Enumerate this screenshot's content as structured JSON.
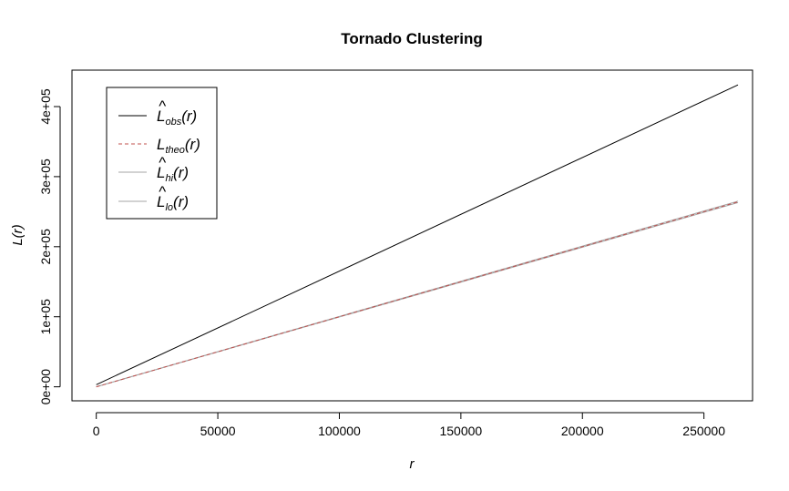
{
  "chart_data": {
    "type": "line",
    "title": "Tornado Clustering",
    "xlabel": "r",
    "ylabel": "L(r)",
    "xlim": [
      -10000,
      270000
    ],
    "ylim": [
      -20000,
      452000
    ],
    "x_ticks": [
      0,
      50000,
      100000,
      150000,
      200000,
      250000
    ],
    "x_tick_labels": [
      "0",
      "50000",
      "100000",
      "150000",
      "200000",
      "250000"
    ],
    "y_ticks": [
      0,
      100000,
      200000,
      300000,
      400000
    ],
    "y_tick_labels": [
      "0e+00",
      "1e+05",
      "2e+05",
      "3e+05",
      "4e+05"
    ],
    "grid": false,
    "legend_position": "top-left",
    "series": [
      {
        "key": "obs",
        "base": "L",
        "hat": true,
        "sub": "obs",
        "arg": "(r)",
        "color": "#000000",
        "dash": "solid",
        "x": [
          0,
          264000
        ],
        "y": [
          3000,
          431000
        ]
      },
      {
        "key": "theo",
        "base": "L",
        "hat": false,
        "sub": "theo",
        "arg": "(r)",
        "color": "#c0504d",
        "dash": "dashed",
        "x": [
          0,
          264000
        ],
        "y": [
          0,
          264000
        ]
      },
      {
        "key": "hi",
        "base": "L",
        "hat": true,
        "sub": "hi",
        "arg": "(r)",
        "color": "#a6a6a6",
        "dash": "solid",
        "x": [
          0,
          264000
        ],
        "y": [
          0,
          265000
        ]
      },
      {
        "key": "lo",
        "base": "L",
        "hat": true,
        "sub": "lo",
        "arg": "(r)",
        "color": "#a6a6a6",
        "dash": "solid",
        "x": [
          0,
          264000
        ],
        "y": [
          0,
          263000
        ]
      }
    ]
  }
}
